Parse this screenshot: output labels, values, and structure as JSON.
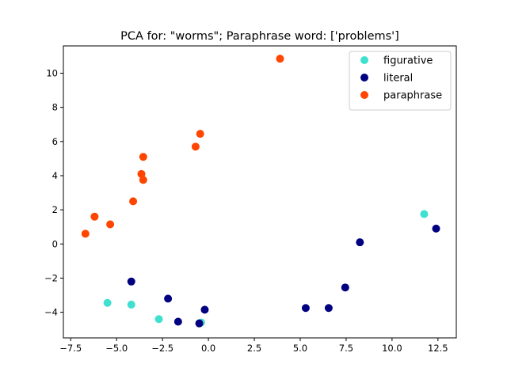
{
  "chart_data": {
    "type": "scatter",
    "title": "PCA for: \"worms\"; Paraphrase word: ['problems']",
    "xlabel": "",
    "ylabel": "",
    "xlim": [
      -7.9,
      13.5
    ],
    "ylim": [
      -5.5,
      11.6
    ],
    "xticks": [
      -7.5,
      -5.0,
      -2.5,
      0.0,
      2.5,
      5.0,
      7.5,
      10.0,
      12.5
    ],
    "xtick_labels": [
      "−7.5",
      "−5.0",
      "−2.5",
      "0.0",
      "2.5",
      "5.0",
      "7.5",
      "10.0",
      "12.5"
    ],
    "yticks": [
      -4,
      -2,
      0,
      2,
      4,
      6,
      8,
      10
    ],
    "ytick_labels": [
      "−4",
      "−2",
      "0",
      "2",
      "4",
      "6",
      "8",
      "10"
    ],
    "grid": false,
    "legend_position": "top-right",
    "series": [
      {
        "name": "figurative",
        "color": "#40e0d0",
        "points": [
          [
            -5.5,
            -3.45
          ],
          [
            -4.2,
            -3.55
          ],
          [
            -2.7,
            -4.4
          ],
          [
            -0.4,
            -4.6
          ],
          [
            11.75,
            1.75
          ]
        ]
      },
      {
        "name": "literal",
        "color": "#000080",
        "points": [
          [
            -4.2,
            -2.2
          ],
          [
            -2.2,
            -3.2
          ],
          [
            -1.65,
            -4.55
          ],
          [
            -0.5,
            -4.65
          ],
          [
            -0.2,
            -3.85
          ],
          [
            5.3,
            -3.75
          ],
          [
            6.55,
            -3.75
          ],
          [
            7.45,
            -2.55
          ],
          [
            8.25,
            0.1
          ],
          [
            12.4,
            0.9
          ]
        ]
      },
      {
        "name": "paraphrase",
        "color": "#ff4500",
        "points": [
          [
            -6.7,
            0.6
          ],
          [
            -6.2,
            1.6
          ],
          [
            -5.35,
            1.15
          ],
          [
            -4.1,
            2.5
          ],
          [
            -3.65,
            4.1
          ],
          [
            -3.55,
            5.1
          ],
          [
            -3.55,
            3.75
          ],
          [
            -0.7,
            5.7
          ],
          [
            -0.45,
            6.45
          ],
          [
            3.9,
            10.85
          ]
        ]
      }
    ]
  }
}
